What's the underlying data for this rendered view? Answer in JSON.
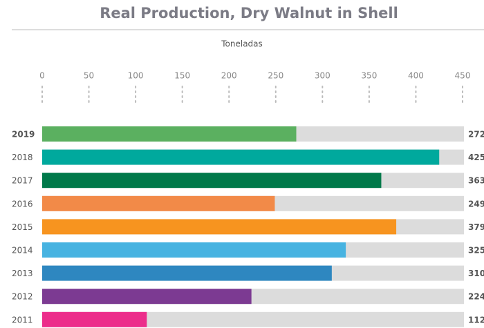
{
  "chart_data": {
    "type": "bar",
    "orientation": "horizontal",
    "title": "Real Production, Dry Walnut in Shell",
    "x_label": "Toneladas",
    "categories": [
      "2019",
      "2018",
      "2017",
      "2016",
      "2015",
      "2014",
      "2013",
      "2012",
      "2011"
    ],
    "values": [
      272,
      425,
      363,
      249,
      379,
      325,
      310,
      224,
      112
    ],
    "colors": [
      "#5bb060",
      "#00a99d",
      "#00794a",
      "#f28a48",
      "#f7941f",
      "#47b3e1",
      "#2e87c0",
      "#7c3a92",
      "#ec2d8b"
    ],
    "track_color": "#dcdcdc",
    "xlim": [
      0,
      450
    ],
    "xticks": [
      0,
      50,
      100,
      150,
      200,
      250,
      300,
      350,
      400,
      450
    ]
  }
}
